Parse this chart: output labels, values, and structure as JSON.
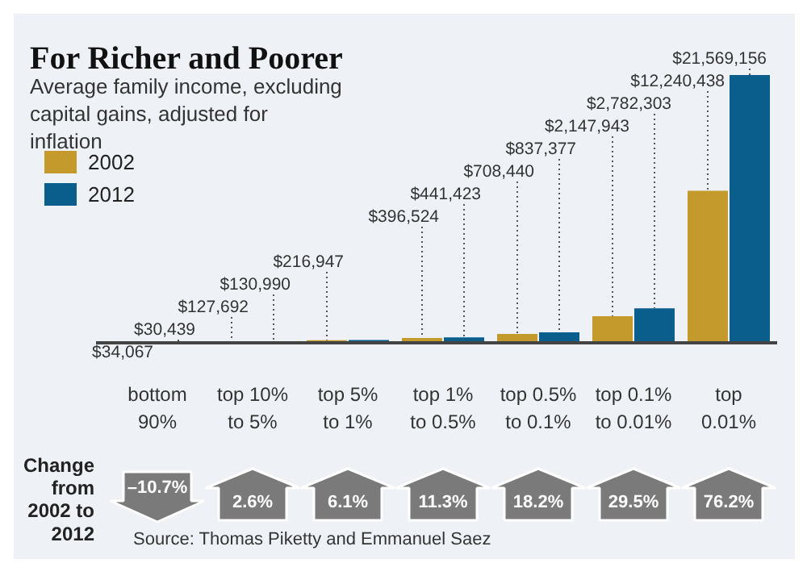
{
  "chart_data": {
    "type": "bar",
    "title": "For Richer and Poorer",
    "subtitle": "Average family income, excluding capital gains, adjusted for inflation",
    "categories": [
      "bottom 90%",
      "top 10% to 5%",
      "top 5% to 1%",
      "top 1% to 0.5%",
      "top 0.5% to 0.1%",
      "top 0.1% to 0.01%",
      "top 0.01%"
    ],
    "series": [
      {
        "name": "2002",
        "color": "#c49a2c",
        "values": [
          34067,
          127692,
          216947,
          396524,
          708440,
          2147943,
          12240438
        ],
        "value_labels": [
          "$34,067",
          "$127,692",
          "$216,947",
          "$396,524",
          "$708,440",
          "$2,147,943",
          "$12,240,438"
        ]
      },
      {
        "name": "2012",
        "color": "#0a5e8c",
        "values": [
          30439,
          130990,
          230181,
          441423,
          837377,
          2782303,
          21569156
        ],
        "value_labels": [
          "$30,439",
          "$130,990",
          null,
          "$441,423",
          "$837,377",
          "$2,782,303",
          "$21,569,156"
        ]
      }
    ],
    "legend": "top left",
    "annotations": [
      "Change from 2002 to 2012",
      "–10.7%",
      "2.6%",
      "6.1%",
      "11.3%",
      "18.2%",
      "29.5%",
      "76.2%",
      "Source: Thomas Piketty and Emmanuel Saez"
    ]
  }
}
